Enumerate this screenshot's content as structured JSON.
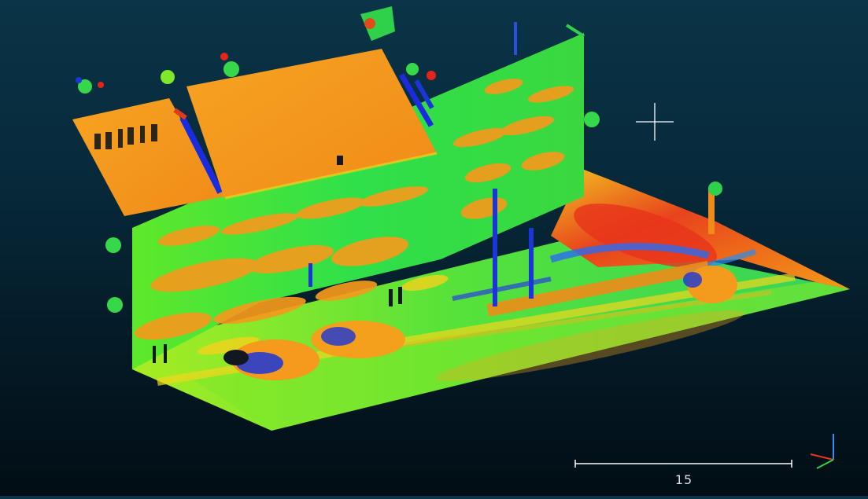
{
  "viewer": {
    "background_top": "#0a3447",
    "background_bottom": "#020d14"
  },
  "point_cloud": {
    "subject": "building-facade-with-street",
    "colormap": [
      "#0a2bd8",
      "#19d96a",
      "#7fea1a",
      "#f6e11c",
      "#f8a312",
      "#e8501a",
      "#e3251a"
    ]
  },
  "scale_bar": {
    "label": "15",
    "color": "#ffffff"
  },
  "axis_gizmo": {
    "x_color": "#e8361f",
    "y_color": "#2fd14a",
    "z_color": "#2f8ff0"
  },
  "cursor": {
    "icon": "crosshair-icon",
    "color": "#ffffff"
  }
}
